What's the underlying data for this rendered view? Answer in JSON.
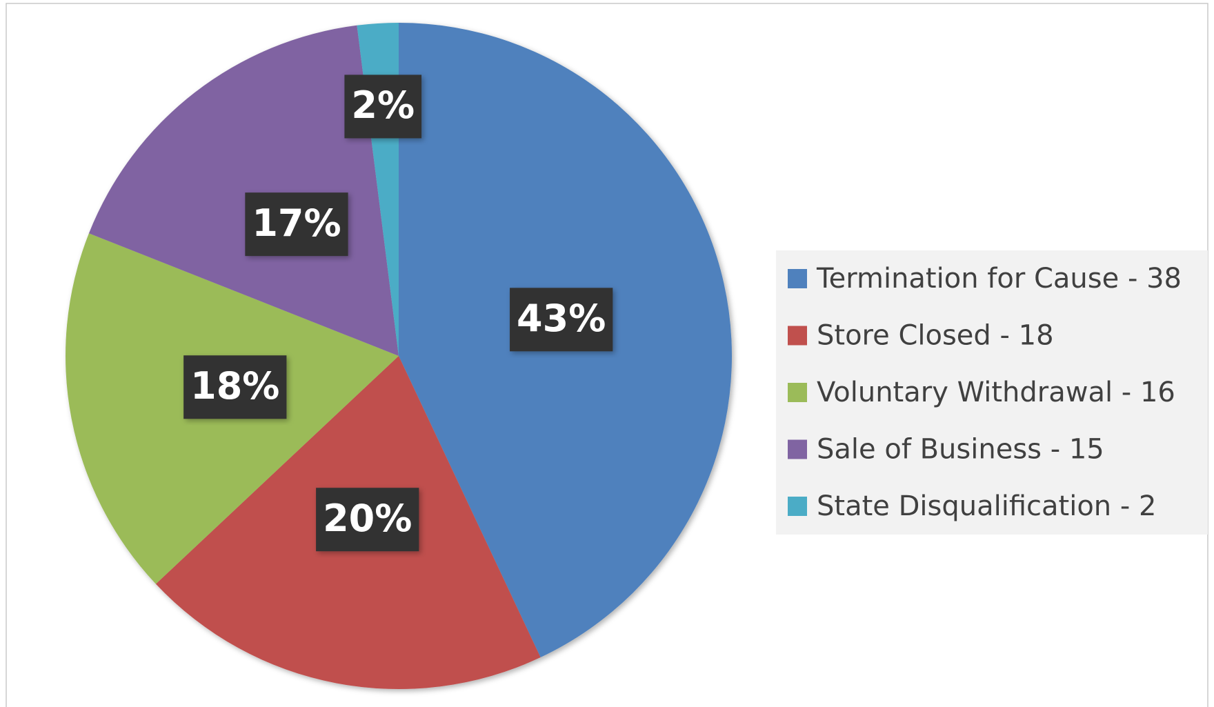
{
  "chart_data": {
    "type": "pie",
    "categories": [
      "Termination for Cause - 38",
      "Store Closed - 18",
      "Voluntary Withdrawal - 16",
      "Sale of Business - 15",
      "State Disqualification - 2"
    ],
    "values": [
      43,
      20,
      18,
      17,
      2
    ],
    "value_labels": [
      "43%",
      "20%",
      "18%",
      "17%",
      "2%"
    ],
    "colors": [
      "#4f81bd",
      "#c0504d",
      "#9bbb59",
      "#8064a2",
      "#4bacc6"
    ],
    "legend": "right"
  }
}
